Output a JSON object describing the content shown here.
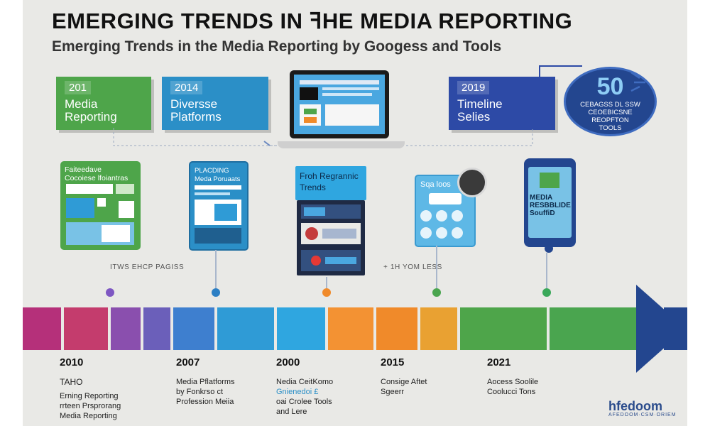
{
  "header": {
    "title": "EMERGING TRENDS IN ꟻHE MEDIA REPORTING",
    "subtitle": "Emerging Trends in the Media Reporting by Googess and Tools"
  },
  "top_tags": [
    {
      "year": "201",
      "label_line1": "Media",
      "label_line2": "Reporting",
      "color": "#4ea54a"
    },
    {
      "year": "2014",
      "label_line1": "Diversse",
      "label_line2": "Platforms",
      "color": "#2b8fc7"
    },
    {
      "year": "2019",
      "label_line1": "Timeline",
      "label_line2": "Selies",
      "color": "#2d4aa6"
    }
  ],
  "badge": {
    "number": "50",
    "line1": "CEBAGSS DL SSW",
    "line2": "CEOEBICSNE",
    "line3": "REOPFTON",
    "line4": "TOOLS"
  },
  "cards": {
    "card1_header": "Faiteedave\nCocoiese lfoiantras",
    "card2_header": "PLACDING\nMeda Poruaats",
    "card3_header": "Froh Regrannic\nTrends",
    "card4_header": "Sqa loos",
    "card5_header": "MEDIA\nRESBBLIDE\nSouffiD"
  },
  "captions": {
    "left": "ITWS EHCP PAGISS",
    "right": "+ 1H YOM LESS"
  },
  "timeline": {
    "segments": [
      "#b5307a",
      "#c43c6d",
      "#8a4fae",
      "#6b5fba",
      "#3e7fcf",
      "#2f9bd6",
      "#2fa6e0",
      "#f39233",
      "#f08a2a",
      "#e9a132",
      "#4ea54a",
      "#4aa54f",
      "#23468f"
    ],
    "dots": [
      "#7e57c2",
      "#2c7fc4",
      "#f08a2a",
      "#4aa54f",
      "#3aa85a"
    ]
  },
  "bottom": [
    {
      "year": "2010",
      "line1": "TAHO",
      "line2": "Erning Reporting",
      "line3": "rrteen Prsprorang",
      "line4": "Media Reporting"
    },
    {
      "year": "2007",
      "line1": "Media Pflatforms",
      "line2": "by Fonkrso ct",
      "line3": "Profession Meiia",
      "line4": ""
    },
    {
      "year": "2000",
      "line1": "Nedia CeitKomo",
      "line2": "Gnienedoi £",
      "line3": "oai Crolee Tools",
      "line4": "and Lere"
    },
    {
      "year": "2015",
      "line1": "Consige Aftet",
      "line2": "Sgeerr",
      "line3": "",
      "line4": ""
    },
    {
      "year": "2021",
      "line1": "Aocess Soolile",
      "line2": "Coolucci Tons",
      "line3": "",
      "line4": ""
    }
  ],
  "logo": {
    "text": "hfedoom",
    "sub": "AFEDOOM·CSM·ORIEM"
  },
  "colors": {
    "background": "#e9e9e6",
    "navy": "#23468f",
    "green": "#4ea54a",
    "blue": "#2b8fc7",
    "orange": "#f08a2a"
  }
}
